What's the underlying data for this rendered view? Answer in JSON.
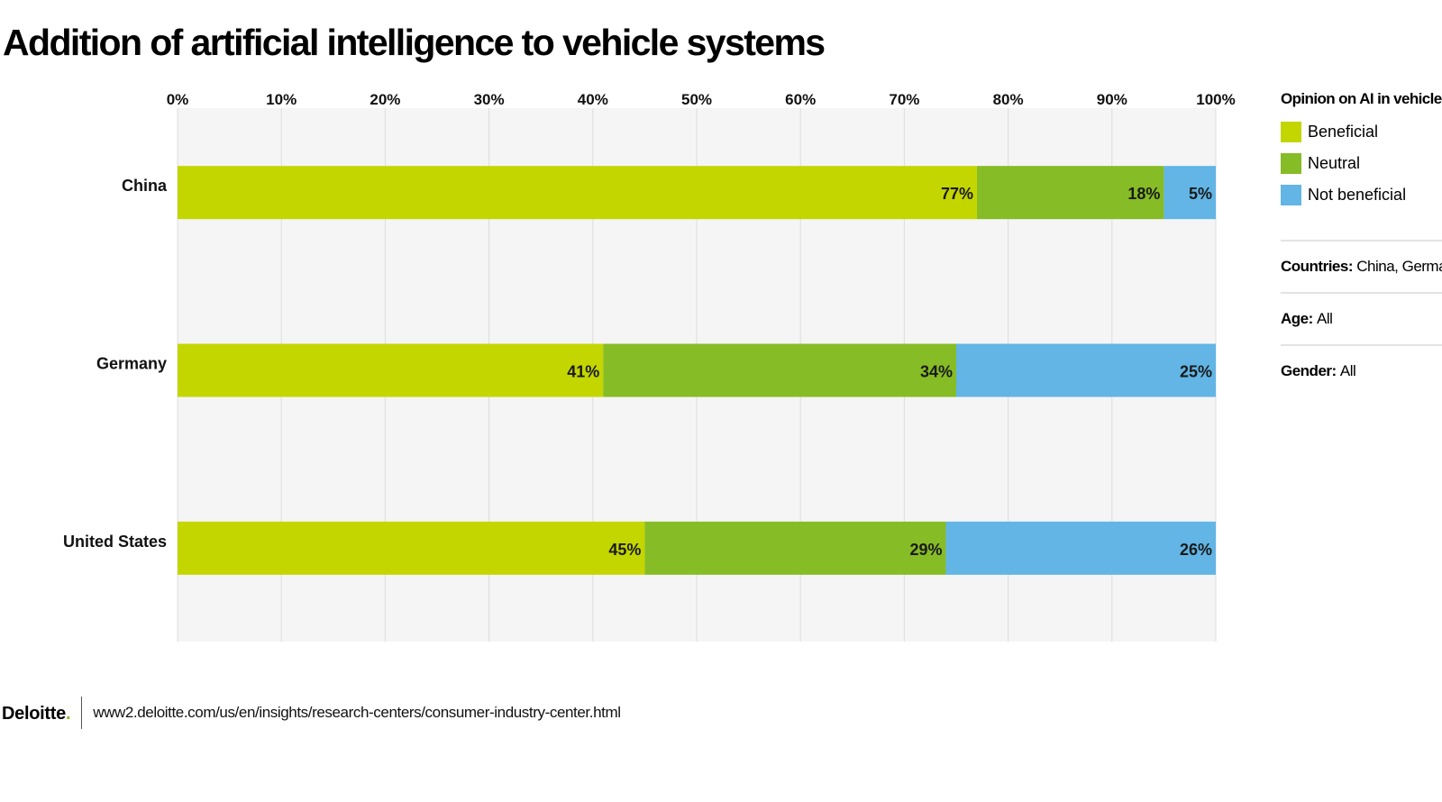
{
  "title": "Addition of artificial intelligence to vehicle systems",
  "legend": {
    "title": "Opinion on AI in vehicle systems",
    "items": [
      {
        "label": "Beneficial",
        "color": "#c4d600"
      },
      {
        "label": "Neutral",
        "color": "#86bc25"
      },
      {
        "label": "Not beneficial",
        "color": "#62b5e5"
      }
    ]
  },
  "filters": [
    {
      "key": "Countries:",
      "value": "China, Germany, United States"
    },
    {
      "key": "Age:",
      "value": "All"
    },
    {
      "key": "Gender:",
      "value": "All"
    }
  ],
  "footer": {
    "brand": "Deloitte",
    "brand_dot": ".",
    "url": "www2.deloitte.com/us/en/insights/research-centers/consumer-industry-center.html"
  },
  "chart_data": {
    "type": "bar",
    "orientation": "horizontal",
    "stacked": true,
    "title": "Addition of artificial intelligence to vehicle systems",
    "categories": [
      "China",
      "Germany",
      "United States"
    ],
    "series": [
      {
        "name": "Beneficial",
        "color": "#c4d600",
        "values": [
          77,
          41,
          45
        ],
        "labels": [
          "77%",
          "41%",
          "45%"
        ]
      },
      {
        "name": "Neutral",
        "color": "#86bc25",
        "values": [
          18,
          34,
          29
        ],
        "labels": [
          "18%",
          "34%",
          "29%"
        ]
      },
      {
        "name": "Not beneficial",
        "color": "#62b5e5",
        "values": [
          5,
          25,
          26
        ],
        "labels": [
          "5%",
          "25%",
          "26%"
        ]
      }
    ],
    "xlim": [
      0,
      100
    ],
    "xticks": [
      "0%",
      "10%",
      "20%",
      "30%",
      "40%",
      "50%",
      "60%",
      "70%",
      "80%",
      "90%",
      "100%"
    ],
    "axis_position": "top",
    "grid": true,
    "legend_position": "right"
  }
}
